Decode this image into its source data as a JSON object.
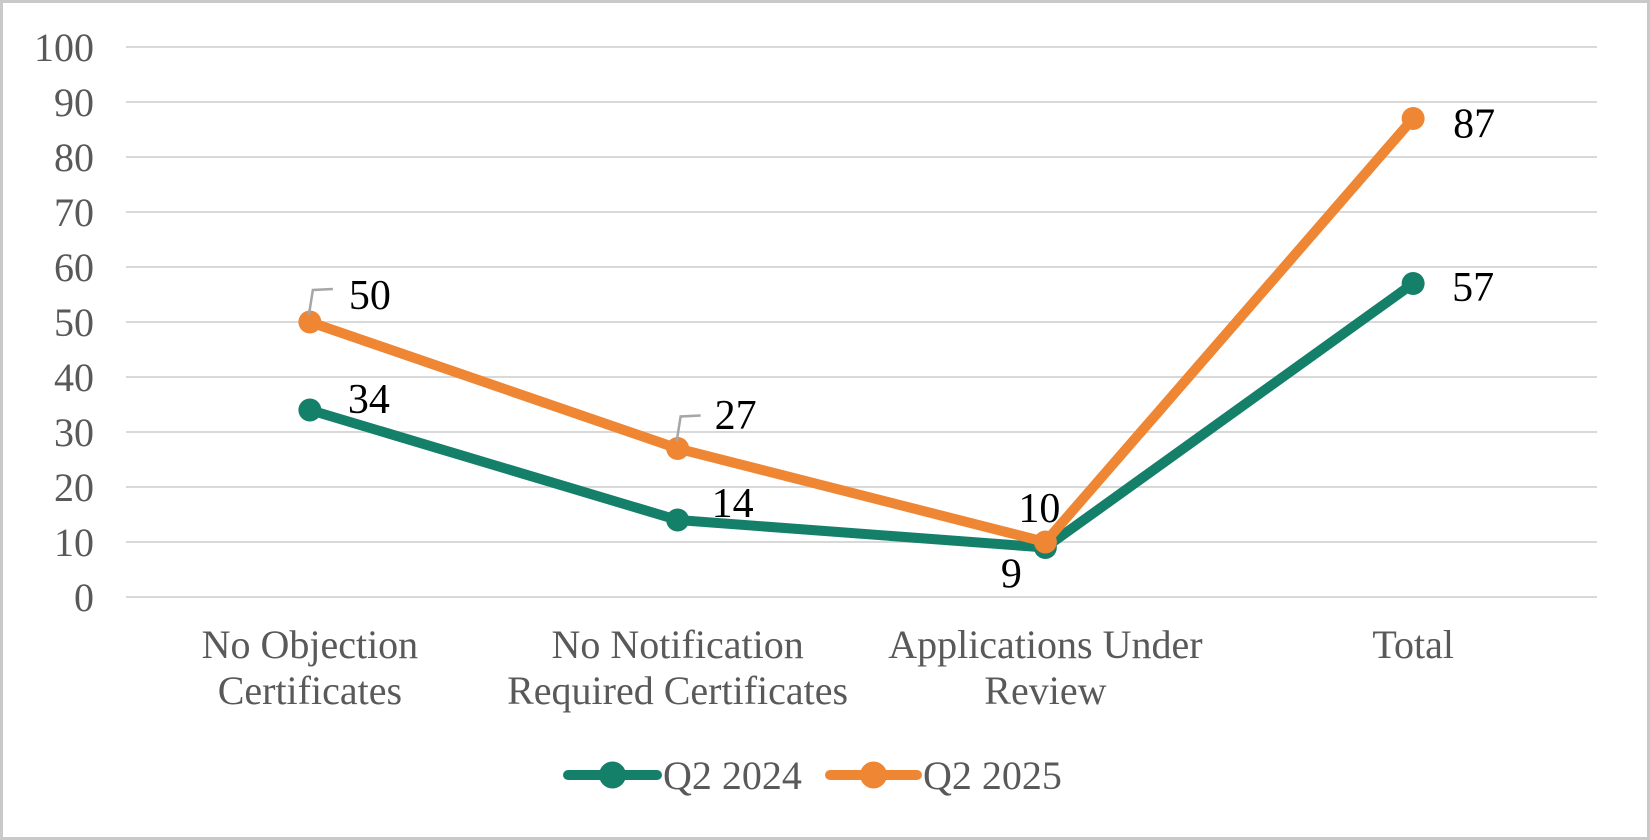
{
  "chart_data": {
    "type": "line",
    "title": "",
    "xlabel": "",
    "ylabel": "",
    "categories": [
      "No Objection Certificates",
      "No Notification Required Certificates",
      "Applications Under Review",
      "Total"
    ],
    "category_lines": [
      [
        "No Objection",
        "Certificates"
      ],
      [
        "No Notification",
        "Required Certificates"
      ],
      [
        "Applications Under",
        "Review"
      ],
      [
        "Total"
      ]
    ],
    "series": [
      {
        "name": "Q2 2024",
        "color": "#15806A",
        "values": [
          34,
          14,
          9,
          57
        ]
      },
      {
        "name": "Q2 2025",
        "color": "#EF8633",
        "values": [
          50,
          27,
          10,
          87
        ]
      }
    ],
    "ylim": [
      0,
      100
    ],
    "yticks": [
      0,
      10,
      20,
      30,
      40,
      50,
      60,
      70,
      80,
      90,
      100
    ],
    "grid": true,
    "legend_position": "bottom",
    "data_labels_shown": true
  },
  "styles": {
    "background": "#ffffff",
    "frame_border_color": "#c9c9c9",
    "grid_color": "#d9d9d9",
    "axis_text_color": "#595959",
    "data_label_color": "#000000",
    "leader_line_color": "#a6a6a6"
  }
}
